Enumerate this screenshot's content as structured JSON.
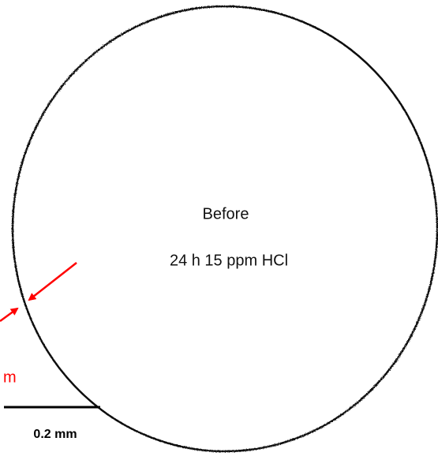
{
  "labels": {
    "title": "Before",
    "condition": "24 h 15 ppm HCl",
    "measurement": "m"
  },
  "scale_bar": {
    "label": "0.2 mm"
  }
}
